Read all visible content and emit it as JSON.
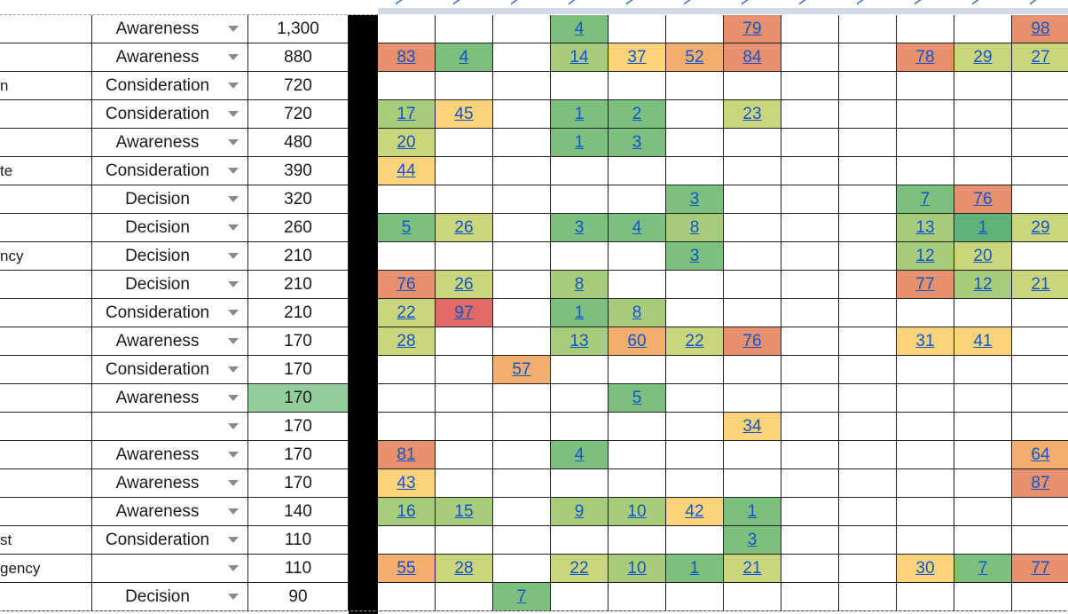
{
  "colors": {
    "dark_green": "#5fb27a",
    "green": "#7cbf7f",
    "light_green": "#a9cc7c",
    "yellow_green": "#cdd57c",
    "yellow": "#fbd47a",
    "orange": "#f3ad6e",
    "red_orange": "#e8906e",
    "red": "#e06a66",
    "volume_highlight": "#93cd9d"
  },
  "rows": [
    {
      "name": "",
      "stage": "Awareness",
      "volume": "1,300",
      "ranks": [
        "",
        "",
        "",
        "4",
        "",
        "",
        "79",
        "",
        "",
        "",
        "",
        "98"
      ],
      "colors": [
        "",
        "",
        "",
        "green",
        "",
        "",
        "red_orange",
        "",
        "",
        "",
        "",
        "red_orange"
      ]
    },
    {
      "name": "",
      "stage": "Awareness",
      "volume": "880",
      "ranks": [
        "83",
        "4",
        "",
        "14",
        "37",
        "52",
        "84",
        "",
        "",
        "78",
        "29",
        "27"
      ],
      "colors": [
        "red_orange",
        "green",
        "",
        "light_green",
        "yellow",
        "orange",
        "red_orange",
        "",
        "",
        "red_orange",
        "yellow_green",
        "yellow_green"
      ]
    },
    {
      "name": "n",
      "stage": "Consideration",
      "volume": "720",
      "ranks": [
        "",
        "",
        "",
        "",
        "",
        "",
        "",
        "",
        "",
        "",
        "",
        ""
      ],
      "colors": [
        "",
        "",
        "",
        "",
        "",
        "",
        "",
        "",
        "",
        "",
        "",
        ""
      ]
    },
    {
      "name": "",
      "stage": "Consideration",
      "volume": "720",
      "ranks": [
        "17",
        "45",
        "",
        "1",
        "2",
        "",
        "23",
        "",
        "",
        "",
        "",
        ""
      ],
      "colors": [
        "light_green",
        "yellow",
        "",
        "green",
        "green",
        "",
        "yellow_green",
        "",
        "",
        "",
        "",
        ""
      ]
    },
    {
      "name": "",
      "stage": "Awareness",
      "volume": "480",
      "ranks": [
        "20",
        "",
        "",
        "1",
        "3",
        "",
        "",
        "",
        "",
        "",
        "",
        ""
      ],
      "colors": [
        "yellow_green",
        "",
        "",
        "green",
        "green",
        "",
        "",
        "",
        "",
        "",
        "",
        ""
      ]
    },
    {
      "name": "te",
      "stage": "Consideration",
      "volume": "390",
      "ranks": [
        "44",
        "",
        "",
        "",
        "",
        "",
        "",
        "",
        "",
        "",
        "",
        ""
      ],
      "colors": [
        "yellow",
        "",
        "",
        "",
        "",
        "",
        "",
        "",
        "",
        "",
        "",
        ""
      ]
    },
    {
      "name": "",
      "stage": "Decision",
      "volume": "320",
      "ranks": [
        "",
        "",
        "",
        "",
        "",
        "3",
        "",
        "",
        "",
        "7",
        "76",
        ""
      ],
      "colors": [
        "",
        "",
        "",
        "",
        "",
        "green",
        "",
        "",
        "",
        "green",
        "red_orange",
        ""
      ]
    },
    {
      "name": "",
      "stage": "Decision",
      "volume": "260",
      "ranks": [
        "5",
        "26",
        "",
        "3",
        "4",
        "8",
        "",
        "",
        "",
        "13",
        "1",
        "29"
      ],
      "colors": [
        "green",
        "yellow_green",
        "",
        "green",
        "green",
        "light_green",
        "",
        "",
        "",
        "light_green",
        "dark_green",
        "yellow_green"
      ]
    },
    {
      "name": "ncy",
      "stage": "Decision",
      "volume": "210",
      "ranks": [
        "",
        "",
        "",
        "",
        "",
        "3",
        "",
        "",
        "",
        "12",
        "20",
        ""
      ],
      "colors": [
        "",
        "",
        "",
        "",
        "",
        "green",
        "",
        "",
        "",
        "light_green",
        "yellow_green",
        ""
      ]
    },
    {
      "name": "",
      "stage": "Decision",
      "volume": "210",
      "ranks": [
        "76",
        "26",
        "",
        "8",
        "",
        "",
        "",
        "",
        "",
        "77",
        "12",
        "21"
      ],
      "colors": [
        "red_orange",
        "yellow_green",
        "",
        "light_green",
        "",
        "",
        "",
        "",
        "",
        "red_orange",
        "light_green",
        "yellow_green"
      ]
    },
    {
      "name": "",
      "stage": "Consideration",
      "volume": "210",
      "ranks": [
        "22",
        "97",
        "",
        "1",
        "8",
        "",
        "",
        "",
        "",
        "",
        "",
        ""
      ],
      "colors": [
        "yellow_green",
        "red",
        "",
        "green",
        "light_green",
        "",
        "",
        "",
        "",
        "",
        "",
        ""
      ]
    },
    {
      "name": "",
      "stage": "Awareness",
      "volume": "170",
      "ranks": [
        "28",
        "",
        "",
        "13",
        "60",
        "22",
        "76",
        "",
        "",
        "31",
        "41",
        ""
      ],
      "colors": [
        "yellow_green",
        "",
        "",
        "light_green",
        "orange",
        "yellow_green",
        "red_orange",
        "",
        "",
        "yellow",
        "yellow",
        ""
      ]
    },
    {
      "name": "",
      "stage": "Consideration",
      "volume": "170",
      "ranks": [
        "",
        "",
        "57",
        "",
        "",
        "",
        "",
        "",
        "",
        "",
        "",
        ""
      ],
      "colors": [
        "",
        "",
        "orange",
        "",
        "",
        "",
        "",
        "",
        "",
        "",
        "",
        ""
      ]
    },
    {
      "name": "",
      "stage": "Awareness",
      "volume": "170",
      "volume_highlight": true,
      "ranks": [
        "",
        "",
        "",
        "",
        "5",
        "",
        "",
        "",
        "",
        "",
        "",
        ""
      ],
      "colors": [
        "",
        "",
        "",
        "",
        "green",
        "",
        "",
        "",
        "",
        "",
        "",
        ""
      ]
    },
    {
      "name": "",
      "stage": "",
      "volume": "170",
      "ranks": [
        "",
        "",
        "",
        "",
        "",
        "",
        "34",
        "",
        "",
        "",
        "",
        ""
      ],
      "colors": [
        "",
        "",
        "",
        "",
        "",
        "",
        "yellow",
        "",
        "",
        "",
        "",
        ""
      ]
    },
    {
      "name": "",
      "stage": "Awareness",
      "volume": "170",
      "ranks": [
        "81",
        "",
        "",
        "4",
        "",
        "",
        "",
        "",
        "",
        "",
        "",
        "64"
      ],
      "colors": [
        "red_orange",
        "",
        "",
        "green",
        "",
        "",
        "",
        "",
        "",
        "",
        "",
        "orange"
      ]
    },
    {
      "name": "",
      "stage": "Awareness",
      "volume": "170",
      "ranks": [
        "43",
        "",
        "",
        "",
        "",
        "",
        "",
        "",
        "",
        "",
        "",
        "87"
      ],
      "colors": [
        "yellow",
        "",
        "",
        "",
        "",
        "",
        "",
        "",
        "",
        "",
        "",
        "red_orange"
      ]
    },
    {
      "name": "",
      "stage": "Awareness",
      "volume": "140",
      "ranks": [
        "16",
        "15",
        "",
        "9",
        "10",
        "42",
        "1",
        "",
        "",
        "",
        "",
        ""
      ],
      "colors": [
        "light_green",
        "light_green",
        "",
        "light_green",
        "light_green",
        "yellow",
        "green",
        "",
        "",
        "",
        "",
        ""
      ]
    },
    {
      "name": "st",
      "stage": "Consideration",
      "volume": "110",
      "ranks": [
        "",
        "",
        "",
        "",
        "",
        "",
        "3",
        "",
        "",
        "",
        "",
        ""
      ],
      "colors": [
        "",
        "",
        "",
        "",
        "",
        "",
        "green",
        "",
        "",
        "",
        "",
        ""
      ]
    },
    {
      "name": "gency",
      "stage": "",
      "volume": "110",
      "ranks": [
        "55",
        "28",
        "",
        "22",
        "10",
        "1",
        "21",
        "",
        "",
        "30",
        "7",
        "77"
      ],
      "colors": [
        "orange",
        "yellow_green",
        "",
        "yellow_green",
        "light_green",
        "green",
        "yellow_green",
        "",
        "",
        "yellow",
        "green",
        "red_orange"
      ]
    },
    {
      "name": "",
      "stage": "Decision",
      "volume": "90",
      "ranks": [
        "",
        "",
        "7",
        "",
        "",
        "",
        "",
        "",
        "",
        "",
        "",
        ""
      ],
      "colors": [
        "",
        "",
        "green",
        "",
        "",
        "",
        "",
        "",
        "",
        "",
        "",
        ""
      ]
    }
  ]
}
